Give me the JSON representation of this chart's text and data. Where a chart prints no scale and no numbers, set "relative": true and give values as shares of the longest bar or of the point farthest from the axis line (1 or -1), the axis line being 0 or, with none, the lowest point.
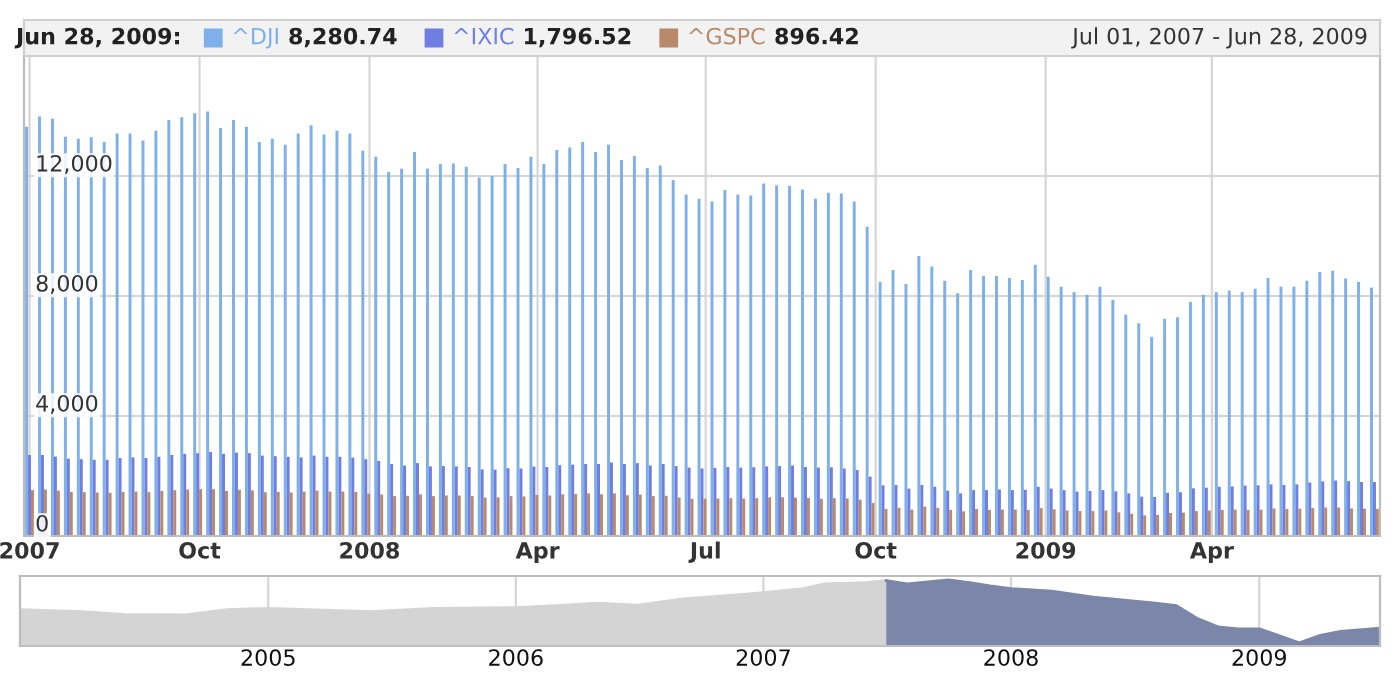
{
  "chart_data": [
    {
      "type": "bar",
      "legend": "top",
      "grid": true,
      "annotations": [
        "Jun 28, 2009:",
        "8,280.74",
        "1,796.52",
        "896.42",
        "Jul 01, 2007 - Jun 28, 2009"
      ],
      "x": [
        "2007-07-01",
        "2007-07-08",
        "2007-07-15",
        "2007-07-22",
        "2007-07-29",
        "2007-08-05",
        "2007-08-12",
        "2007-08-19",
        "2007-08-26",
        "2007-09-02",
        "2007-09-09",
        "2007-09-16",
        "2007-09-23",
        "2007-09-30",
        "2007-10-07",
        "2007-10-14",
        "2007-10-21",
        "2007-10-28",
        "2007-11-04",
        "2007-11-11",
        "2007-11-18",
        "2007-11-25",
        "2007-12-02",
        "2007-12-09",
        "2007-12-16",
        "2007-12-23",
        "2007-12-30",
        "2008-01-06",
        "2008-01-13",
        "2008-01-20",
        "2008-01-27",
        "2008-02-03",
        "2008-02-10",
        "2008-02-17",
        "2008-02-24",
        "2008-03-02",
        "2008-03-09",
        "2008-03-16",
        "2008-03-23",
        "2008-03-30",
        "2008-04-06",
        "2008-04-13",
        "2008-04-20",
        "2008-04-27",
        "2008-05-04",
        "2008-05-11",
        "2008-05-18",
        "2008-05-25",
        "2008-06-01",
        "2008-06-08",
        "2008-06-15",
        "2008-06-22",
        "2008-06-29",
        "2008-07-06",
        "2008-07-13",
        "2008-07-20",
        "2008-07-27",
        "2008-08-03",
        "2008-08-10",
        "2008-08-17",
        "2008-08-24",
        "2008-08-31",
        "2008-09-07",
        "2008-09-14",
        "2008-09-21",
        "2008-09-28",
        "2008-10-05",
        "2008-10-12",
        "2008-10-19",
        "2008-10-26",
        "2008-11-02",
        "2008-11-09",
        "2008-11-16",
        "2008-11-23",
        "2008-11-30",
        "2008-12-07",
        "2008-12-14",
        "2008-12-21",
        "2008-12-28",
        "2009-01-04",
        "2009-01-11",
        "2009-01-18",
        "2009-01-25",
        "2009-02-01",
        "2009-02-08",
        "2009-02-15",
        "2009-02-22",
        "2009-03-01",
        "2009-03-08",
        "2009-03-15",
        "2009-03-22",
        "2009-03-29",
        "2009-04-05",
        "2009-04-12",
        "2009-04-19",
        "2009-04-26",
        "2009-05-03",
        "2009-05-10",
        "2009-05-17",
        "2009-05-24",
        "2009-05-31",
        "2009-06-07",
        "2009-06-14",
        "2009-06-21",
        "2009-06-28"
      ],
      "series": [
        {
          "name": "^DJI",
          "color": "#7eb0ea",
          "values": [
            13640,
            13980,
            13910,
            13310,
            13240,
            13290,
            13130,
            13420,
            13420,
            13180,
            13510,
            13870,
            13960,
            14090,
            14150,
            13600,
            13870,
            13640,
            13130,
            13240,
            13040,
            13420,
            13690,
            13380,
            13510,
            13420,
            12840,
            12640,
            12130,
            12240,
            12800,
            12240,
            12400,
            12420,
            12310,
            11950,
            12000,
            12400,
            12270,
            12640,
            12400,
            12870,
            12950,
            13130,
            12800,
            13040,
            12530,
            12670,
            12270,
            12350,
            11870,
            11380,
            11240,
            11150,
            11530,
            11380,
            11350,
            11750,
            11690,
            11670,
            11550,
            11240,
            11440,
            11420,
            11150,
            10310,
            8470,
            8870,
            8400,
            9330,
            8980,
            8510,
            8090,
            8870,
            8670,
            8670,
            8600,
            8530,
            9040,
            8640,
            8310,
            8130,
            8040,
            8310,
            7870,
            7380,
            7090,
            6640,
            7240,
            7290,
            7800,
            8040,
            8130,
            8180,
            8130,
            8240,
            8600,
            8310,
            8310,
            8510,
            8800,
            8840,
            8580,
            8470,
            8280
          ]
        },
        {
          "name": "^IXIC",
          "color": "#6f7ee0",
          "values": [
            2700,
            2700,
            2650,
            2580,
            2560,
            2540,
            2540,
            2600,
            2620,
            2600,
            2640,
            2700,
            2740,
            2760,
            2800,
            2740,
            2780,
            2760,
            2680,
            2660,
            2640,
            2620,
            2680,
            2640,
            2640,
            2610,
            2560,
            2500,
            2400,
            2350,
            2430,
            2320,
            2330,
            2320,
            2300,
            2220,
            2210,
            2260,
            2250,
            2310,
            2300,
            2360,
            2380,
            2400,
            2400,
            2450,
            2400,
            2430,
            2350,
            2400,
            2330,
            2280,
            2250,
            2270,
            2300,
            2280,
            2290,
            2320,
            2330,
            2350,
            2300,
            2280,
            2290,
            2250,
            2200,
            1980,
            1690,
            1700,
            1580,
            1700,
            1640,
            1510,
            1420,
            1530,
            1530,
            1550,
            1530,
            1540,
            1640,
            1580,
            1530,
            1480,
            1500,
            1530,
            1490,
            1420,
            1310,
            1300,
            1440,
            1460,
            1590,
            1610,
            1640,
            1650,
            1680,
            1690,
            1720,
            1700,
            1720,
            1780,
            1820,
            1850,
            1830,
            1800,
            1800
          ]
        },
        {
          "name": "^GSPC",
          "color": "#b98a6a",
          "values": [
            1530,
            1550,
            1510,
            1470,
            1460,
            1450,
            1440,
            1470,
            1480,
            1460,
            1500,
            1530,
            1550,
            1560,
            1560,
            1500,
            1540,
            1520,
            1460,
            1470,
            1450,
            1480,
            1510,
            1480,
            1480,
            1470,
            1410,
            1380,
            1330,
            1340,
            1390,
            1330,
            1350,
            1350,
            1330,
            1280,
            1290,
            1330,
            1320,
            1370,
            1350,
            1390,
            1400,
            1420,
            1390,
            1420,
            1360,
            1380,
            1330,
            1340,
            1280,
            1240,
            1240,
            1250,
            1260,
            1250,
            1260,
            1290,
            1290,
            1280,
            1270,
            1240,
            1260,
            1250,
            1210,
            1100,
            900,
            940,
            880,
            980,
            940,
            870,
            820,
            900,
            870,
            880,
            880,
            870,
            930,
            890,
            850,
            830,
            830,
            850,
            790,
            740,
            690,
            700,
            770,
            780,
            830,
            850,
            870,
            880,
            870,
            880,
            920,
            900,
            910,
            930,
            950,
            950,
            920,
            910,
            900
          ]
        }
      ],
      "xlim": [
        "2007-06-28",
        "2009-07-01"
      ],
      "xticks": [
        {
          "value": "2007-07-01",
          "label": "2007"
        },
        {
          "value": "2007-10-01",
          "label": "Oct"
        },
        {
          "value": "2008-01-01",
          "label": "2008"
        },
        {
          "value": "2008-04-01",
          "label": "Apr"
        },
        {
          "value": "2008-07-01",
          "label": "Jul"
        },
        {
          "value": "2008-10-01",
          "label": "Oct"
        },
        {
          "value": "2009-01-01",
          "label": "2009"
        },
        {
          "value": "2009-04-01",
          "label": "Apr"
        }
      ],
      "ylim": [
        0,
        16000
      ],
      "yticks": [
        {
          "value": 0,
          "label": "0"
        },
        {
          "value": 4000,
          "label": "4,000"
        },
        {
          "value": 8000,
          "label": "8,000"
        },
        {
          "value": 12000,
          "label": "12,000"
        }
      ]
    },
    {
      "type": "area",
      "relative": true,
      "grid": "x",
      "tick_labels": "x",
      "series": [
        {
          "color": "#d4d4d4",
          "x": [
            "2004-01",
            "2004-04",
            "2004-06",
            "2004-09",
            "2004-11",
            "2005-01",
            "2005-03",
            "2005-06",
            "2005-09",
            "2006-01",
            "2006-03",
            "2006-05",
            "2006-07",
            "2006-09",
            "2006-12",
            "2007-01",
            "2007-03",
            "2007-04",
            "2007-06",
            "2007-07-01"
          ],
          "values": [
            0.55,
            0.52,
            0.48,
            0.47,
            0.55,
            0.57,
            0.55,
            0.52,
            0.57,
            0.58,
            0.61,
            0.65,
            0.62,
            0.71,
            0.78,
            0.81,
            0.87,
            0.94,
            0.96,
            0.99
          ]
        },
        {
          "color": "#7b86a8",
          "x": [
            "2007-07-01",
            "2007-08",
            "2007-10",
            "2007-11",
            "2007-12",
            "2008-01",
            "2008-03",
            "2008-05",
            "2008-07",
            "2008-08",
            "2008-09",
            "2008-10",
            "2008-11",
            "2008-12",
            "2009-01",
            "2009-03",
            "2009-04",
            "2009-05",
            "2009-06-28"
          ],
          "values": [
            0.99,
            0.94,
            1,
            0.96,
            0.91,
            0.87,
            0.83,
            0.74,
            0.68,
            0.65,
            0.61,
            0.42,
            0.29,
            0.26,
            0.26,
            0.05,
            0.16,
            0.22,
            0.27
          ]
        }
      ],
      "xlim": [
        "2004-01",
        "2009-06-28"
      ],
      "xticks": [
        {
          "value": "2005-01-01",
          "label": "2005"
        },
        {
          "value": "2006-01-01",
          "label": "2006"
        },
        {
          "value": "2007-01-01",
          "label": "2007"
        },
        {
          "value": "2008-01-01",
          "label": "2008"
        },
        {
          "value": "2009-01-01",
          "label": "2009"
        }
      ]
    }
  ]
}
